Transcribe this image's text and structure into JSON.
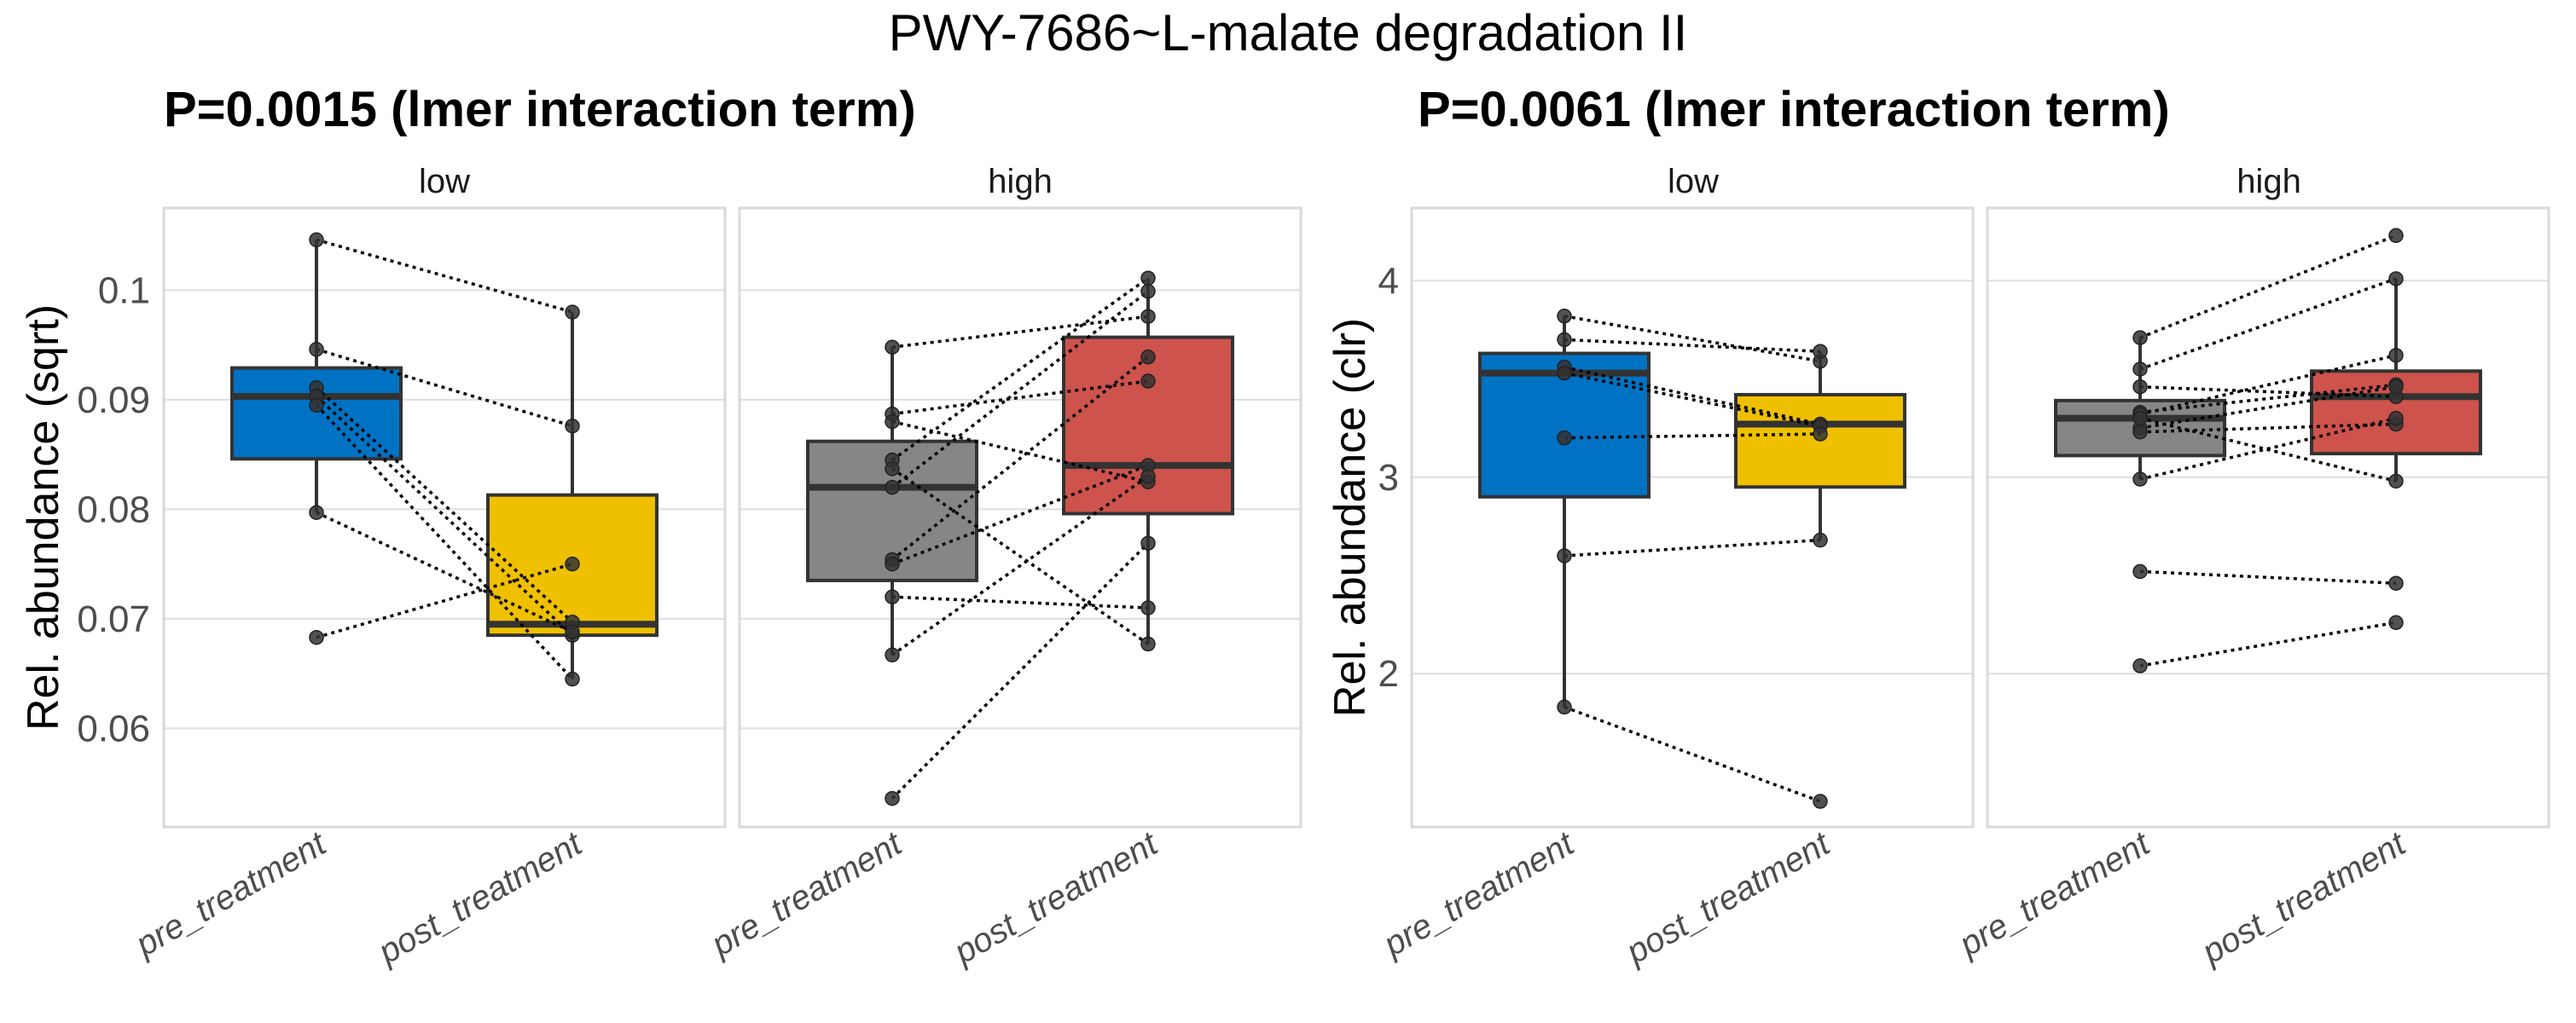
{
  "chart_data": {
    "type": "box",
    "title": "PWY-7686~L-malate degradation II",
    "colors": {
      "low_pre": "#0072C3",
      "low_post": "#EFC000",
      "high_pre": "#868686",
      "high_post": "#CD534C",
      "outline": "#333333"
    },
    "plots": [
      {
        "subtitle": "P=0.0015 (lmer interaction term)",
        "ylabel": "Rel. abundance (sqrt)",
        "ylim": [
          0.051,
          0.1075
        ],
        "yticks": [
          0.1,
          0.09,
          0.08,
          0.07,
          0.06
        ],
        "ytick_labels": [
          "0.1",
          "0.09",
          "0.08",
          "0.07",
          "0.06"
        ],
        "facets": [
          {
            "strip": "low",
            "categories": [
              "pre_treatment",
              "post_treatment"
            ],
            "boxes": [
              {
                "group": "pre_treatment",
                "color_key": "low_pre",
                "q1": 0.0846,
                "median": 0.0903,
                "q3": 0.0929,
                "whisker_low": 0.0797,
                "whisker_high": 0.1046
              },
              {
                "group": "post_treatment",
                "color_key": "low_post",
                "q1": 0.0685,
                "median": 0.0695,
                "q3": 0.0813,
                "whisker_low": 0.0645,
                "whisker_high": 0.098
              }
            ],
            "pairs": [
              [
                0.1046,
                0.098
              ],
              [
                0.0946,
                0.0876
              ],
              [
                0.0911,
                0.0697
              ],
              [
                0.0903,
                0.0685
              ],
              [
                0.0895,
                0.0645
              ],
              [
                0.0797,
                0.0688
              ],
              [
                0.0683,
                0.075
              ]
            ]
          },
          {
            "strip": "high",
            "categories": [
              "pre_treatment",
              "post_treatment"
            ],
            "boxes": [
              {
                "group": "pre_treatment",
                "color_key": "high_pre",
                "q1": 0.0735,
                "median": 0.082,
                "q3": 0.0862,
                "whisker_low": 0.0667,
                "whisker_high": 0.0948
              },
              {
                "group": "post_treatment",
                "color_key": "high_post",
                "q1": 0.0796,
                "median": 0.084,
                "q3": 0.0957,
                "whisker_low": 0.0677,
                "whisker_high": 0.1011
              }
            ],
            "pairs": [
              [
                0.0948,
                0.0976
              ],
              [
                0.0887,
                0.0917
              ],
              [
                0.088,
                0.0825
              ],
              [
                0.0845,
                0.1011
              ],
              [
                0.0837,
                0.0677
              ],
              [
                0.082,
                0.0999
              ],
              [
                0.0754,
                0.0939
              ],
              [
                0.075,
                0.084
              ],
              [
                0.072,
                0.071
              ],
              [
                0.0667,
                0.083
              ],
              [
                0.0536,
                0.0769
              ]
            ]
          }
        ]
      },
      {
        "subtitle": "P=0.0061 (lmer interaction term)",
        "ylabel": "Rel. abundance (clr)",
        "ylim": [
          1.22,
          4.37
        ],
        "yticks": [
          4,
          3,
          2
        ],
        "ytick_labels": [
          "4",
          "3",
          "2"
        ],
        "facets": [
          {
            "strip": "low",
            "categories": [
              "pre_treatment",
              "post_treatment"
            ],
            "boxes": [
              {
                "group": "pre_treatment",
                "color_key": "low_pre",
                "q1": 2.9,
                "median": 3.53,
                "q3": 3.63,
                "whisker_low": 1.83,
                "whisker_high": 3.82
              },
              {
                "group": "post_treatment",
                "color_key": "low_post",
                "q1": 2.95,
                "median": 3.27,
                "q3": 3.42,
                "whisker_low": 2.68,
                "whisker_high": 3.64
              }
            ],
            "pairs": [
              [
                3.82,
                3.59
              ],
              [
                3.7,
                3.64
              ],
              [
                3.56,
                3.27
              ],
              [
                3.53,
                3.26
              ],
              [
                3.2,
                3.22
              ],
              [
                2.6,
                2.68
              ],
              [
                1.83,
                1.35
              ]
            ]
          },
          {
            "strip": "high",
            "categories": [
              "pre_treatment",
              "post_treatment"
            ],
            "boxes": [
              {
                "group": "pre_treatment",
                "color_key": "high_pre",
                "q1": 3.11,
                "median": 3.3,
                "q3": 3.39,
                "whisker_low": 2.99,
                "whisker_high": 3.71
              },
              {
                "group": "post_treatment",
                "color_key": "high_post",
                "q1": 3.12,
                "median": 3.41,
                "q3": 3.54,
                "whisker_low": 2.98,
                "whisker_high": 4.01
              }
            ],
            "pairs": [
              [
                3.71,
                4.23
              ],
              [
                3.55,
                4.01
              ],
              [
                3.46,
                3.41
              ],
              [
                3.33,
                3.47
              ],
              [
                3.32,
                3.62
              ],
              [
                3.25,
                3.46
              ],
              [
                3.23,
                3.27
              ],
              [
                3.3,
                2.98
              ],
              [
                2.99,
                3.3
              ],
              [
                2.52,
                2.46
              ],
              [
                2.04,
                2.26
              ]
            ]
          }
        ]
      }
    ]
  }
}
